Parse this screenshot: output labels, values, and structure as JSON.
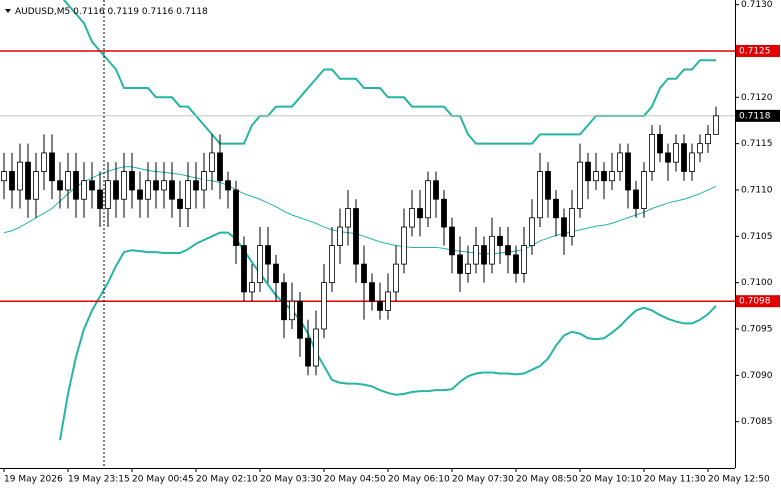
{
  "chart_data": {
    "type": "candlestick",
    "symbol": "AUDUSD,M5",
    "header": {
      "open": 0.7116,
      "high": 0.7119,
      "low": 0.7116,
      "close": 0.7118
    },
    "categories": [
      "19 May 2026",
      null,
      null,
      null,
      null,
      null,
      null,
      null,
      "19 May 23:15",
      null,
      null,
      null,
      null,
      null,
      null,
      null,
      "20 May 00:45",
      null,
      null,
      null,
      null,
      null,
      null,
      null,
      "20 May 02:10",
      null,
      null,
      null,
      null,
      null,
      null,
      null,
      "20 May 03:30",
      null,
      null,
      null,
      null,
      null,
      null,
      null,
      "20 May 04:50",
      null,
      null,
      null,
      null,
      null,
      null,
      null,
      "20 May 06:10",
      null,
      null,
      null,
      null,
      null,
      null,
      null,
      "20 May 07:30",
      null,
      null,
      null,
      null,
      null,
      null,
      null,
      "20 May 08:50",
      null,
      null,
      null,
      null,
      null,
      null,
      null,
      "20 May 10:10",
      null,
      null,
      null,
      null,
      null,
      null,
      null,
      "20 May 11:30",
      null,
      null,
      null,
      null,
      null,
      null,
      null,
      "20 May 12:50",
      null
    ],
    "open": [
      0.7111,
      0.7112,
      0.711,
      0.7113,
      0.7109,
      0.7112,
      0.7114,
      0.7111,
      0.711,
      0.7112,
      0.7109,
      0.7111,
      0.711,
      0.7108,
      0.7111,
      0.7109,
      0.7112,
      0.711,
      0.7109,
      0.7111,
      0.711,
      0.7111,
      0.7109,
      0.7108,
      0.7111,
      0.711,
      0.7112,
      0.7114,
      0.7111,
      0.711,
      0.7104,
      0.7099,
      0.71,
      0.7104,
      0.7102,
      0.71,
      0.7096,
      0.7098,
      0.7094,
      0.7091,
      0.7095,
      0.71,
      0.7104,
      0.7106,
      0.7108,
      0.7102,
      0.71,
      0.7098,
      0.7097,
      0.7099,
      0.7102,
      0.7106,
      0.7108,
      0.7107,
      0.7111,
      0.7109,
      0.7106,
      0.7103,
      0.7101,
      0.7102,
      0.7104,
      0.7102,
      0.7105,
      0.7104,
      0.7103,
      0.7101,
      0.7104,
      0.7107,
      0.7112,
      0.7109,
      0.7107,
      0.7105,
      0.7108,
      0.7113,
      0.7111,
      0.7112,
      0.7111,
      0.7112,
      0.7114,
      0.711,
      0.7108,
      0.7112,
      0.7116,
      0.7114,
      0.7113,
      0.7115,
      0.7112,
      0.7114,
      0.7115,
      0.7116
    ],
    "high": [
      0.7114,
      0.7114,
      0.7115,
      0.7115,
      0.7114,
      0.7116,
      0.7116,
      0.7113,
      0.7114,
      0.7114,
      0.7113,
      0.7113,
      0.7112,
      0.7113,
      0.7113,
      0.7114,
      0.7114,
      0.7112,
      0.7113,
      0.7113,
      0.7113,
      0.7113,
      0.7111,
      0.7113,
      0.7113,
      0.7114,
      0.7116,
      0.7116,
      0.7112,
      0.7111,
      0.7105,
      0.7102,
      0.7106,
      0.7106,
      0.7103,
      0.7101,
      0.71,
      0.7099,
      0.7096,
      0.7097,
      0.7102,
      0.7106,
      0.7108,
      0.711,
      0.7109,
      0.7104,
      0.7101,
      0.71,
      0.7101,
      0.7104,
      0.7108,
      0.711,
      0.711,
      0.7112,
      0.7112,
      0.711,
      0.7107,
      0.7105,
      0.7104,
      0.7106,
      0.7105,
      0.7107,
      0.7106,
      0.7106,
      0.7104,
      0.7106,
      0.7109,
      0.7114,
      0.7113,
      0.711,
      0.7108,
      0.711,
      0.7115,
      0.7114,
      0.7114,
      0.7113,
      0.7114,
      0.7115,
      0.7115,
      0.7111,
      0.7113,
      0.7117,
      0.7117,
      0.7115,
      0.7116,
      0.7116,
      0.7115,
      0.7116,
      0.7117,
      0.7119
    ],
    "low": [
      0.7109,
      0.7108,
      0.7108,
      0.7107,
      0.7107,
      0.711,
      0.7109,
      0.7108,
      0.7108,
      0.7107,
      0.7107,
      0.7108,
      0.7106,
      0.7106,
      0.7107,
      0.7107,
      0.7108,
      0.7107,
      0.7107,
      0.7108,
      0.7108,
      0.7107,
      0.7106,
      0.7106,
      0.7108,
      0.7108,
      0.711,
      0.7109,
      0.7108,
      0.7102,
      0.7098,
      0.7098,
      0.7099,
      0.71,
      0.7098,
      0.7094,
      0.7095,
      0.7092,
      0.709,
      0.709,
      0.7094,
      0.7099,
      0.7102,
      0.7104,
      0.71,
      0.7096,
      0.7097,
      0.7096,
      0.7096,
      0.7098,
      0.7101,
      0.7105,
      0.7105,
      0.7106,
      0.7107,
      0.7104,
      0.7101,
      0.7099,
      0.71,
      0.7101,
      0.71,
      0.7101,
      0.7102,
      0.7101,
      0.71,
      0.71,
      0.7103,
      0.7106,
      0.7107,
      0.7105,
      0.7103,
      0.7104,
      0.7107,
      0.7109,
      0.711,
      0.7109,
      0.711,
      0.7111,
      0.7108,
      0.7107,
      0.7107,
      0.7111,
      0.7113,
      0.7111,
      0.7112,
      0.7111,
      0.7111,
      0.7113,
      0.7114,
      0.7116
    ],
    "close": [
      0.7112,
      0.711,
      0.7113,
      0.7109,
      0.7112,
      0.7114,
      0.7111,
      0.711,
      0.7112,
      0.7109,
      0.7111,
      0.711,
      0.7108,
      0.7111,
      0.7109,
      0.7112,
      0.711,
      0.7109,
      0.7111,
      0.711,
      0.7111,
      0.7109,
      0.7108,
      0.7111,
      0.711,
      0.7112,
      0.7114,
      0.7111,
      0.711,
      0.7104,
      0.7099,
      0.71,
      0.7104,
      0.7102,
      0.71,
      0.7096,
      0.7098,
      0.7094,
      0.7091,
      0.7095,
      0.71,
      0.7104,
      0.7106,
      0.7108,
      0.7102,
      0.71,
      0.7098,
      0.7097,
      0.7099,
      0.7102,
      0.7106,
      0.7108,
      0.7107,
      0.7111,
      0.7109,
      0.7106,
      0.7103,
      0.7101,
      0.7102,
      0.7104,
      0.7102,
      0.7105,
      0.7104,
      0.7103,
      0.7101,
      0.7104,
      0.7107,
      0.7112,
      0.7109,
      0.7107,
      0.7105,
      0.7108,
      0.7113,
      0.7111,
      0.7112,
      0.7111,
      0.7112,
      0.7114,
      0.711,
      0.7108,
      0.7112,
      0.7116,
      0.7114,
      0.7113,
      0.7115,
      0.7112,
      0.7114,
      0.7115,
      0.7116,
      0.7118
    ],
    "candle_colors": {
      "up": "#ffffff",
      "down": "#000000",
      "outline": "#000000"
    },
    "bands": {
      "color": "#26b5a5",
      "upper": [
        null,
        null,
        null,
        null,
        null,
        null,
        null,
        0.7131,
        0.713,
        0.7129,
        0.7128,
        0.7126,
        0.7125,
        0.7124,
        0.7123,
        0.7121,
        0.7121,
        0.7121,
        0.7121,
        0.712,
        0.712,
        0.712,
        0.7119,
        0.7119,
        0.7118,
        0.7117,
        0.7116,
        0.7115,
        0.7115,
        0.7115,
        0.7115,
        0.7117,
        0.7118,
        0.7118,
        0.7119,
        0.7119,
        0.7119,
        0.712,
        0.7121,
        0.7122,
        0.7123,
        0.7123,
        0.7122,
        0.7122,
        0.7122,
        0.7121,
        0.7121,
        0.7121,
        0.712,
        0.712,
        0.712,
        0.7119,
        0.7119,
        0.7119,
        0.7119,
        0.7119,
        0.7118,
        0.7118,
        0.7116,
        0.7115,
        0.7115,
        0.7115,
        0.7115,
        0.7115,
        0.7115,
        0.7115,
        0.7115,
        0.7116,
        0.7116,
        0.7116,
        0.7116,
        0.7116,
        0.7116,
        0.7117,
        0.7118,
        0.7118,
        0.7118,
        0.7118,
        0.7118,
        0.7118,
        0.7118,
        0.7119,
        0.7121,
        0.7122,
        0.7122,
        0.7123,
        0.7123,
        0.7124,
        0.7124,
        0.7124
      ],
      "middle": [
        0.71054,
        0.71056,
        0.7106,
        0.71065,
        0.7107,
        0.71075,
        0.7108,
        0.71088,
        0.71096,
        0.71103,
        0.71109,
        0.71113,
        0.71117,
        0.7112,
        0.71123,
        0.71125,
        0.71125,
        0.71123,
        0.71121,
        0.7112,
        0.71119,
        0.71118,
        0.71117,
        0.71115,
        0.71113,
        0.71111,
        0.7111,
        0.71108,
        0.71105,
        0.711,
        0.71096,
        0.71093,
        0.7109,
        0.71086,
        0.71082,
        0.71077,
        0.71073,
        0.7107,
        0.71067,
        0.71064,
        0.7106,
        0.71057,
        0.71055,
        0.71054,
        0.71053,
        0.7105,
        0.71047,
        0.71044,
        0.71042,
        0.7104,
        0.71039,
        0.71038,
        0.71038,
        0.71038,
        0.71038,
        0.71037,
        0.71035,
        0.71034,
        0.71033,
        0.71032,
        0.71031,
        0.71031,
        0.71032,
        0.71033,
        0.71034,
        0.71036,
        0.7104,
        0.71045,
        0.71048,
        0.71051,
        0.71053,
        0.71055,
        0.71057,
        0.71059,
        0.71061,
        0.71062,
        0.71064,
        0.71067,
        0.7107,
        0.71073,
        0.71076,
        0.7108,
        0.71083,
        0.71086,
        0.71088,
        0.7109,
        0.71093,
        0.71096,
        0.711,
        0.71104
      ],
      "lower": [
        null,
        null,
        null,
        null,
        null,
        null,
        null,
        0.7083,
        0.7088,
        0.7092,
        0.7095,
        0.7097,
        0.70985,
        0.71,
        0.71018,
        0.71033,
        0.71035,
        0.71034,
        0.71033,
        0.71033,
        0.71032,
        0.71032,
        0.71032,
        0.71036,
        0.71042,
        0.71046,
        0.7105,
        0.71054,
        0.71054,
        0.71047,
        0.71035,
        0.71022,
        0.7101,
        0.70998,
        0.70986,
        0.70978,
        0.7097,
        0.7096,
        0.70945,
        0.70925,
        0.7091,
        0.70895,
        0.70892,
        0.70891,
        0.70891,
        0.7089,
        0.70888,
        0.70884,
        0.70881,
        0.70879,
        0.7088,
        0.70882,
        0.70883,
        0.70883,
        0.70884,
        0.70884,
        0.70885,
        0.70893,
        0.70899,
        0.70902,
        0.70903,
        0.70903,
        0.70902,
        0.70902,
        0.70901,
        0.70902,
        0.70906,
        0.7091,
        0.70918,
        0.70932,
        0.70943,
        0.70947,
        0.70945,
        0.7094,
        0.70939,
        0.7094,
        0.70946,
        0.70953,
        0.70962,
        0.7097,
        0.70973,
        0.7097,
        0.70965,
        0.70961,
        0.70958,
        0.70956,
        0.70956,
        0.7096,
        0.70966,
        0.70975
      ]
    },
    "levels": [
      {
        "value": 0.7125,
        "color": "#e00000"
      },
      {
        "value": 0.7098,
        "color": "#e00000"
      }
    ],
    "bid": {
      "value": 0.7118,
      "color": "#c0c0c0"
    },
    "ylim": [
      0.708,
      0.71305
    ],
    "yticks": [
      {
        "value": 0.713,
        "label": "0.7130"
      },
      0.7125,
      {
        "value": 0.712,
        "label": "0.7120"
      },
      0.7115,
      {
        "value": 0.711,
        "label": "0.7110"
      },
      0.7105,
      {
        "value": 0.71,
        "label": "0.7100"
      },
      0.7095,
      {
        "value": 0.709,
        "label": "0.7090"
      },
      0.7085
    ]
  }
}
